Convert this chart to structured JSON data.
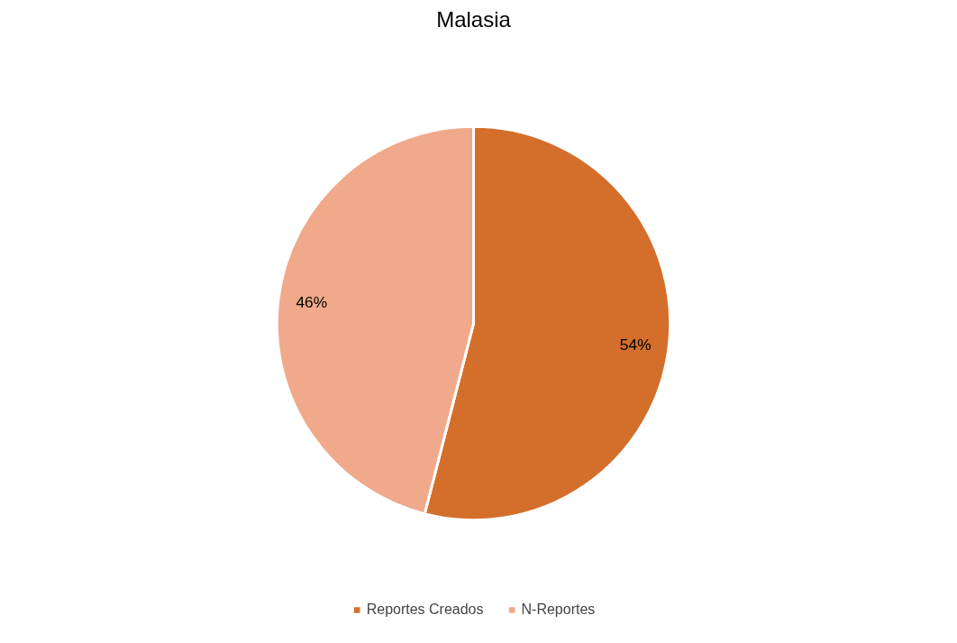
{
  "chart_data": {
    "type": "pie",
    "title": "Malasia",
    "categories": [
      "Reportes Creados",
      "N-Reportes"
    ],
    "values": [
      54,
      46
    ],
    "colors": [
      "#d36f2b",
      "#f0a98b"
    ],
    "value_labels": [
      "54%",
      "46%"
    ],
    "legend": "bottom"
  }
}
